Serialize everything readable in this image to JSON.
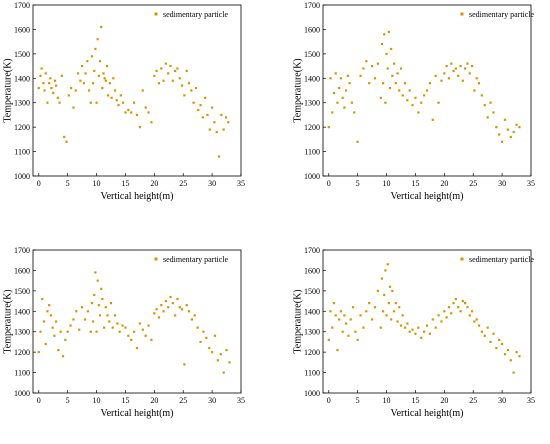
{
  "figure": {
    "background": "#ffffff",
    "marker_color": "#D99100"
  },
  "chart_data": [
    {
      "type": "scatter",
      "panel": "top-left",
      "xlabel": "Vertical height(m)",
      "ylabel": "Temperature(K)",
      "xlim": [
        -1,
        35
      ],
      "ylim": [
        1000,
        1700
      ],
      "xticks": [
        0,
        5,
        10,
        15,
        20,
        25,
        30,
        35
      ],
      "yticks": [
        1000,
        1100,
        1200,
        1300,
        1400,
        1500,
        1600,
        1700
      ],
      "grid": false,
      "legend": {
        "position": "top-right",
        "entries": [
          "sedimentary particle"
        ]
      },
      "series": [
        {
          "name": "sedimentary particle",
          "color": "#D99100",
          "x": [
            0.0,
            0.3,
            0.5,
            0.8,
            1.0,
            1.2,
            1.5,
            1.8,
            2.0,
            2.2,
            2.5,
            2.8,
            3.0,
            3.3,
            3.6,
            4.0,
            4.4,
            4.8,
            5.2,
            5.6,
            6.0,
            6.4,
            6.8,
            7.2,
            7.5,
            7.8,
            8.1,
            8.4,
            8.7,
            9.0,
            9.2,
            9.4,
            9.6,
            9.8,
            10.0,
            10.2,
            10.4,
            10.6,
            10.8,
            11.0,
            11.2,
            11.4,
            11.6,
            11.8,
            12.0,
            12.3,
            12.6,
            12.9,
            13.2,
            13.5,
            13.8,
            14.2,
            14.6,
            15.0,
            15.5,
            16.0,
            16.5,
            17.0,
            17.5,
            18.0,
            18.5,
            19.0,
            19.5,
            20.0,
            20.4,
            20.8,
            21.2,
            21.6,
            22.0,
            22.4,
            22.8,
            23.2,
            23.6,
            24.0,
            24.4,
            24.8,
            25.2,
            25.6,
            26.0,
            26.4,
            26.8,
            27.2,
            27.6,
            28.0,
            28.4,
            28.8,
            29.2,
            29.6,
            30.0,
            30.4,
            30.8,
            31.2,
            31.6,
            32.0,
            32.4,
            32.8
          ],
          "y": [
            1360,
            1410,
            1440,
            1380,
            1350,
            1420,
            1300,
            1380,
            1400,
            1360,
            1340,
            1390,
            1370,
            1320,
            1300,
            1410,
            1160,
            1140,
            1330,
            1360,
            1280,
            1350,
            1420,
            1390,
            1450,
            1380,
            1420,
            1470,
            1350,
            1300,
            1490,
            1380,
            1430,
            1520,
            1300,
            1560,
            1410,
            1470,
            1610,
            1360,
            1420,
            1400,
            1390,
            1450,
            1330,
            1380,
            1320,
            1400,
            1350,
            1310,
            1290,
            1330,
            1300,
            1260,
            1270,
            1260,
            1300,
            1250,
            1200,
            1350,
            1280,
            1260,
            1220,
            1410,
            1430,
            1380,
            1440,
            1390,
            1460,
            1420,
            1450,
            1390,
            1430,
            1440,
            1400,
            1370,
            1330,
            1430,
            1380,
            1350,
            1300,
            1360,
            1270,
            1290,
            1240,
            1320,
            1250,
            1190,
            1280,
            1220,
            1180,
            1080,
            1250,
            1190,
            1240,
            1220
          ]
        }
      ]
    },
    {
      "type": "scatter",
      "panel": "top-right",
      "xlabel": "Vertical height(m)",
      "ylabel": "Temperature(K)",
      "xlim": [
        -1,
        35
      ],
      "ylim": [
        1000,
        1700
      ],
      "xticks": [
        0,
        5,
        10,
        15,
        20,
        25,
        30,
        35
      ],
      "yticks": [
        1000,
        1100,
        1200,
        1300,
        1400,
        1500,
        1600,
        1700
      ],
      "grid": false,
      "legend": {
        "position": "top-right",
        "entries": [
          "sedimentary particle"
        ]
      },
      "series": [
        {
          "name": "sedimentary particle",
          "color": "#D99100",
          "x": [
            0.0,
            0.3,
            0.6,
            0.9,
            1.2,
            1.5,
            1.8,
            2.1,
            2.4,
            2.7,
            3.0,
            3.3,
            3.6,
            4.0,
            4.4,
            5.0,
            5.5,
            6.0,
            6.5,
            7.0,
            7.5,
            8.0,
            8.5,
            9.0,
            9.2,
            9.4,
            9.6,
            9.8,
            10.0,
            10.2,
            10.4,
            10.6,
            10.8,
            11.0,
            11.3,
            11.6,
            11.9,
            12.2,
            12.5,
            12.8,
            13.2,
            13.6,
            14.0,
            14.5,
            15.0,
            15.5,
            16.0,
            16.5,
            17.0,
            17.5,
            18.0,
            18.5,
            19.0,
            19.5,
            20.0,
            20.4,
            20.8,
            21.2,
            21.6,
            22.0,
            22.4,
            22.8,
            23.2,
            23.6,
            24.0,
            24.4,
            24.8,
            25.2,
            25.6,
            26.0,
            26.5,
            27.0,
            27.5,
            28.0,
            28.5,
            29.0,
            29.5,
            30.0,
            30.5,
            31.0,
            31.5,
            32.0,
            32.5,
            33.0
          ],
          "y": [
            1200,
            1400,
            1260,
            1340,
            1420,
            1300,
            1360,
            1400,
            1320,
            1280,
            1350,
            1410,
            1380,
            1300,
            1260,
            1140,
            1410,
            1440,
            1470,
            1380,
            1450,
            1400,
            1460,
            1320,
            1540,
            1380,
            1580,
            1300,
            1500,
            1440,
            1590,
            1360,
            1520,
            1410,
            1460,
            1380,
            1420,
            1350,
            1440,
            1330,
            1380,
            1310,
            1350,
            1290,
            1320,
            1260,
            1300,
            1330,
            1350,
            1380,
            1230,
            1410,
            1300,
            1390,
            1420,
            1450,
            1400,
            1460,
            1430,
            1440,
            1410,
            1450,
            1390,
            1440,
            1460,
            1420,
            1450,
            1350,
            1400,
            1380,
            1330,
            1290,
            1240,
            1300,
            1260,
            1200,
            1170,
            1140,
            1230,
            1190,
            1160,
            1180,
            1210,
            1200
          ]
        }
      ]
    },
    {
      "type": "scatter",
      "panel": "bottom-left",
      "xlabel": "Vertical height(m)",
      "ylabel": "Temperature(K)",
      "xlim": [
        -1,
        35
      ],
      "ylim": [
        1000,
        1700
      ],
      "xticks": [
        0,
        5,
        10,
        15,
        20,
        25,
        30,
        35
      ],
      "yticks": [
        1000,
        1100,
        1200,
        1300,
        1400,
        1500,
        1600,
        1700
      ],
      "grid": false,
      "legend": {
        "position": "top-left",
        "entries": [
          "sedimentary particle"
        ]
      },
      "series": [
        {
          "name": "sedimentary particle",
          "color": "#D99100",
          "x": [
            0.0,
            0.3,
            0.6,
            0.9,
            1.2,
            1.5,
            1.8,
            2.1,
            2.4,
            2.7,
            3.0,
            3.4,
            3.8,
            4.2,
            4.6,
            5.0,
            5.5,
            6.0,
            6.5,
            7.0,
            7.5,
            8.0,
            8.5,
            9.0,
            9.2,
            9.4,
            9.6,
            9.8,
            10.0,
            10.2,
            10.4,
            10.6,
            10.8,
            11.0,
            11.3,
            11.6,
            11.9,
            12.2,
            12.5,
            12.8,
            13.2,
            13.6,
            14.0,
            14.5,
            15.0,
            15.5,
            16.0,
            16.5,
            17.0,
            17.5,
            18.0,
            18.5,
            19.0,
            19.5,
            20.0,
            20.4,
            20.8,
            21.2,
            21.6,
            22.0,
            22.4,
            22.8,
            23.2,
            23.6,
            24.0,
            24.4,
            24.8,
            25.2,
            25.6,
            26.0,
            26.5,
            27.0,
            27.5,
            28.0,
            28.5,
            29.0,
            29.5,
            30.0,
            30.5,
            31.0,
            31.5,
            32.0,
            32.5,
            33.0
          ],
          "y": [
            1200,
            1300,
            1460,
            1350,
            1240,
            1400,
            1430,
            1380,
            1320,
            1280,
            1350,
            1210,
            1300,
            1180,
            1260,
            1300,
            1330,
            1360,
            1400,
            1310,
            1420,
            1360,
            1400,
            1300,
            1440,
            1350,
            1480,
            1590,
            1300,
            1550,
            1430,
            1380,
            1510,
            1460,
            1320,
            1420,
            1380,
            1350,
            1440,
            1320,
            1380,
            1340,
            1300,
            1330,
            1320,
            1280,
            1260,
            1300,
            1220,
            1340,
            1310,
            1280,
            1330,
            1260,
            1390,
            1410,
            1370,
            1430,
            1400,
            1450,
            1420,
            1470,
            1440,
            1380,
            1460,
            1420,
            1410,
            1140,
            1430,
            1400,
            1360,
            1380,
            1320,
            1250,
            1300,
            1270,
            1220,
            1200,
            1280,
            1160,
            1190,
            1100,
            1210,
            1150
          ]
        }
      ]
    },
    {
      "type": "scatter",
      "panel": "bottom-right",
      "xlabel": "Vertical height(m)",
      "ylabel": "Temperature(K)",
      "xlim": [
        -1,
        35
      ],
      "ylim": [
        1000,
        1700
      ],
      "xticks": [
        0,
        5,
        10,
        15,
        20,
        25,
        30,
        35
      ],
      "yticks": [
        1000,
        1100,
        1200,
        1300,
        1400,
        1500,
        1600,
        1700
      ],
      "grid": false,
      "legend": {
        "position": "top-right",
        "entries": [
          "sedimentary particle"
        ]
      },
      "series": [
        {
          "name": "sedimentary particle",
          "color": "#D99100",
          "x": [
            0.0,
            0.3,
            0.6,
            0.9,
            1.2,
            1.5,
            1.8,
            2.1,
            2.4,
            2.7,
            3.0,
            3.4,
            3.8,
            4.2,
            4.6,
            5.0,
            5.5,
            6.0,
            6.5,
            7.0,
            7.5,
            8.0,
            8.5,
            9.0,
            9.2,
            9.4,
            9.6,
            9.8,
            10.0,
            10.2,
            10.4,
            10.6,
            10.8,
            11.0,
            11.3,
            11.6,
            11.9,
            12.2,
            12.5,
            12.8,
            13.2,
            13.6,
            14.0,
            14.5,
            15.0,
            15.5,
            16.0,
            16.5,
            17.0,
            17.5,
            18.0,
            18.5,
            19.0,
            19.5,
            20.0,
            20.4,
            20.8,
            21.2,
            21.6,
            22.0,
            22.4,
            22.8,
            23.2,
            23.6,
            24.0,
            24.4,
            24.8,
            25.2,
            25.6,
            26.0,
            26.5,
            27.0,
            27.5,
            28.0,
            28.5,
            29.0,
            29.5,
            30.0,
            30.5,
            31.0,
            31.5,
            32.0,
            32.5,
            33.0
          ],
          "y": [
            1260,
            1400,
            1320,
            1440,
            1380,
            1210,
            1360,
            1400,
            1300,
            1380,
            1340,
            1280,
            1360,
            1420,
            1300,
            1260,
            1380,
            1320,
            1400,
            1440,
            1360,
            1420,
            1500,
            1320,
            1560,
            1400,
            1480,
            1600,
            1380,
            1630,
            1440,
            1520,
            1360,
            1500,
            1400,
            1440,
            1350,
            1420,
            1330,
            1380,
            1320,
            1340,
            1300,
            1310,
            1290,
            1320,
            1270,
            1300,
            1330,
            1290,
            1360,
            1320,
            1380,
            1350,
            1400,
            1370,
            1420,
            1390,
            1440,
            1460,
            1420,
            1400,
            1450,
            1440,
            1420,
            1380,
            1400,
            1350,
            1360,
            1330,
            1300,
            1280,
            1320,
            1250,
            1290,
            1220,
            1260,
            1240,
            1190,
            1210,
            1160,
            1100,
            1200,
            1180
          ]
        }
      ]
    }
  ]
}
